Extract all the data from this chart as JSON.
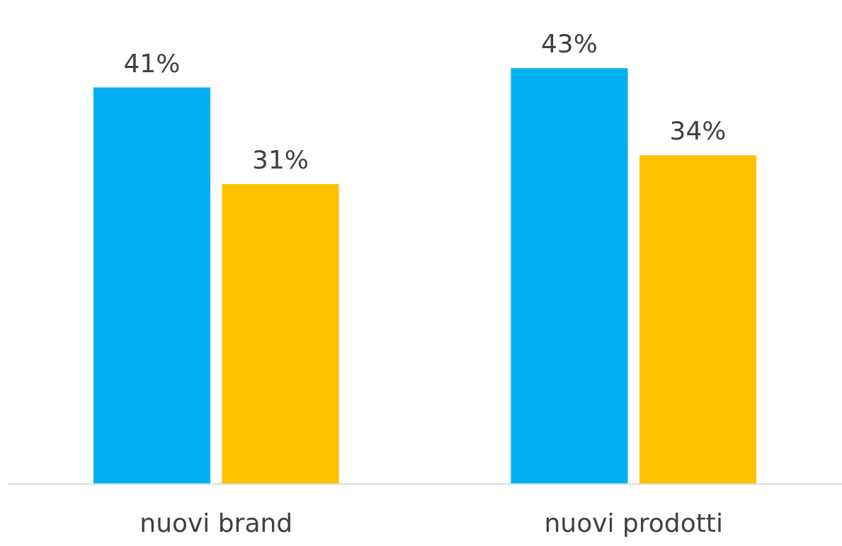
{
  "chart_data": {
    "type": "bar",
    "categories": [
      "nuovi brand",
      "nuovi prodotti"
    ],
    "series": [
      {
        "color": "#00b0f0",
        "values": [
          41,
          43
        ],
        "value_labels": [
          "41%",
          "43%"
        ]
      },
      {
        "color": "#ffc000",
        "values": [
          31,
          34
        ],
        "value_labels": [
          "31%",
          "34%"
        ]
      }
    ]
  }
}
